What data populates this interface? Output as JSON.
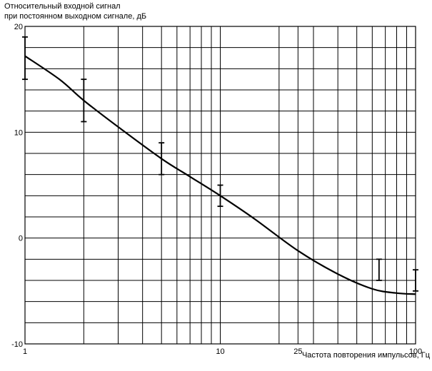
{
  "chart_data": {
    "type": "line",
    "ylabel_lines": [
      "Относительный входной сигнал",
      "при постоянном выходном сигнале, дБ"
    ],
    "xlabel": "Частота повторения импульсов, Гц",
    "x_scale": "log",
    "xlim": [
      1,
      100
    ],
    "ylim": [
      -10,
      20
    ],
    "grid": true,
    "x_ticks": [
      1,
      10,
      25,
      100
    ],
    "x_tick_labels": [
      "1",
      "10",
      "25",
      "100"
    ],
    "y_ticks": [
      -10,
      0,
      10,
      20
    ],
    "y_tick_labels": [
      "-10",
      "0",
      "10",
      "20"
    ],
    "series": [
      {
        "x": [
          1,
          1.5,
          2,
          3,
          5,
          7,
          10,
          15,
          25,
          40,
          60,
          80,
          100
        ],
        "y": [
          17.2,
          15.0,
          13.0,
          10.5,
          7.5,
          5.8,
          4.0,
          1.8,
          -1.2,
          -3.4,
          -4.8,
          -5.2,
          -5.3
        ]
      }
    ],
    "error_bars": [
      {
        "x": 1,
        "low": 15,
        "high": 19
      },
      {
        "x": 2,
        "low": 11,
        "high": 15
      },
      {
        "x": 5,
        "low": 6,
        "high": 9
      },
      {
        "x": 10,
        "low": 3,
        "high": 5
      },
      {
        "x": 65,
        "low": -4,
        "high": -2
      },
      {
        "x": 100,
        "low": -5,
        "high": -3
      }
    ]
  }
}
